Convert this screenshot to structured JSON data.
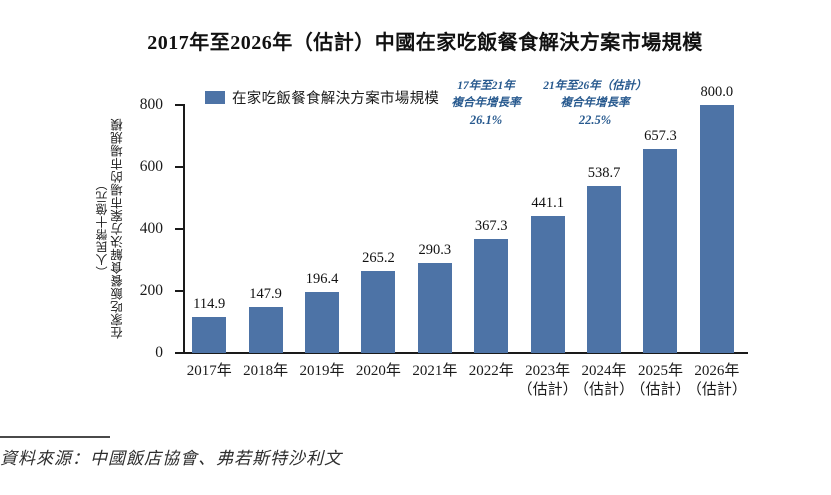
{
  "title": "2017年至2026年（估計）中國在家吃飯餐食解決方案市場規模",
  "legend": {
    "label": "在家吃飯餐食解決方案市場規模"
  },
  "annotations": {
    "cagr_17_21": {
      "line1": "17年至21年",
      "line2": "複合年增長率",
      "value": "26.1%"
    },
    "cagr_21_26": {
      "line1": "21年至26年（估計）",
      "line2": "複合年增長率",
      "value": "22.5%"
    }
  },
  "y_axis": {
    "title": "在家吃飯餐食解決方案市場的市場規模",
    "unit": "（人民幣十億元）"
  },
  "source": "資料來源：中國飯店協會、弗若斯特沙利文",
  "colors": {
    "bar_fill": "#4d73a6",
    "annotation_text": "#27598e",
    "axis": "#1a1a1a"
  },
  "chart_data": {
    "type": "bar",
    "title": "2017年至2026年（估計）中國在家吃飯餐食解決方案市場規模",
    "series_name": "在家吃飯餐食解決方案市場規模",
    "categories": [
      "2017年",
      "2018年",
      "2019年",
      "2020年",
      "2021年",
      "2022年",
      "2023年（估計）",
      "2024年（估計）",
      "2025年（估計）",
      "2026年（估計）"
    ],
    "values": [
      114.9,
      147.9,
      196.4,
      265.2,
      290.3,
      367.3,
      441.1,
      538.7,
      657.3,
      800.0
    ],
    "xlabel": "",
    "ylabel": "在家吃飯餐食解決方案市場的市場規模（人民幣十億元）",
    "ylim": [
      0,
      800
    ],
    "yticks": [
      0,
      200,
      400,
      600,
      800
    ],
    "grid": false,
    "legend_position": "top-left",
    "bar_color": "#4d73a6",
    "annotations": [
      {
        "text": "17年至21年複合年增長率 26.1%"
      },
      {
        "text": "21年至26年（估計）複合年增長率 22.5%"
      }
    ],
    "source": "資料來源：中國飯店協會、弗若斯特沙利文"
  }
}
